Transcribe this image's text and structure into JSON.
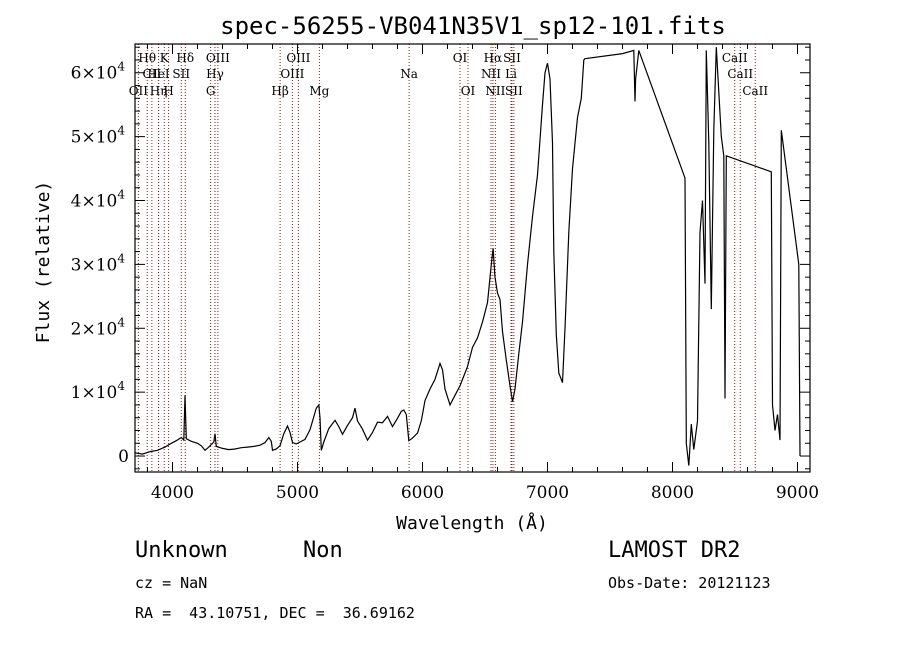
{
  "chart_data": {
    "type": "line",
    "title": "spec-56255-VB041N35V1_sp12-101.fits",
    "xlabel": "Wavelength (Å)",
    "ylabel": "Flux (relative)",
    "xlim": [
      3700,
      9100
    ],
    "ylim": [
      -2500,
      64500
    ],
    "xticks": [
      {
        "value": 4000,
        "label": "4000"
      },
      {
        "value": 5000,
        "label": "5000"
      },
      {
        "value": 6000,
        "label": "6000"
      },
      {
        "value": 7000,
        "label": "7000"
      },
      {
        "value": 8000,
        "label": "8000"
      },
      {
        "value": 9000,
        "label": "9000"
      }
    ],
    "yticks": [
      {
        "value": 0,
        "label": "0"
      },
      {
        "value": 10000,
        "mant": "1×10",
        "exp": "4"
      },
      {
        "value": 20000,
        "mant": "2×10",
        "exp": "4"
      },
      {
        "value": 30000,
        "mant": "3×10",
        "exp": "4"
      },
      {
        "value": 40000,
        "mant": "4×10",
        "exp": "4"
      },
      {
        "value": 50000,
        "mant": "5×10",
        "exp": "4"
      },
      {
        "value": 60000,
        "mant": "6×10",
        "exp": "4"
      }
    ],
    "series": [
      {
        "points": [
          [
            3700,
            500
          ],
          [
            3760,
            300
          ],
          [
            3820,
            700
          ],
          [
            3880,
            900
          ],
          [
            3940,
            1400
          ],
          [
            3990,
            2000
          ],
          [
            4030,
            2400
          ],
          [
            4070,
            2900
          ],
          [
            4090,
            2500
          ],
          [
            4100,
            9500
          ],
          [
            4110,
            2700
          ],
          [
            4150,
            2300
          ],
          [
            4200,
            2000
          ],
          [
            4230,
            1600
          ],
          [
            4260,
            900
          ],
          [
            4290,
            1400
          ],
          [
            4330,
            2200
          ],
          [
            4340,
            3500
          ],
          [
            4350,
            1500
          ],
          [
            4400,
            1200
          ],
          [
            4450,
            1000
          ],
          [
            4500,
            1100
          ],
          [
            4550,
            1300
          ],
          [
            4600,
            1400
          ],
          [
            4650,
            1500
          ],
          [
            4700,
            1700
          ],
          [
            4740,
            2100
          ],
          [
            4770,
            2900
          ],
          [
            4790,
            2300
          ],
          [
            4800,
            900
          ],
          [
            4830,
            1100
          ],
          [
            4860,
            1600
          ],
          [
            4890,
            3500
          ],
          [
            4920,
            4700
          ],
          [
            4940,
            3700
          ],
          [
            4960,
            2100
          ],
          [
            4990,
            1900
          ],
          [
            5020,
            2200
          ],
          [
            5060,
            2600
          ],
          [
            5100,
            4100
          ],
          [
            5150,
            7500
          ],
          [
            5170,
            8000
          ],
          [
            5180,
            6000
          ],
          [
            5190,
            900
          ],
          [
            5210,
            2200
          ],
          [
            5250,
            4300
          ],
          [
            5300,
            5600
          ],
          [
            5330,
            4600
          ],
          [
            5360,
            3400
          ],
          [
            5400,
            4800
          ],
          [
            5440,
            6000
          ],
          [
            5460,
            7500
          ],
          [
            5480,
            5500
          ],
          [
            5520,
            4200
          ],
          [
            5560,
            2500
          ],
          [
            5600,
            3700
          ],
          [
            5640,
            5300
          ],
          [
            5680,
            5200
          ],
          [
            5720,
            6200
          ],
          [
            5760,
            4600
          ],
          [
            5800,
            5900
          ],
          [
            5830,
            7000
          ],
          [
            5850,
            7200
          ],
          [
            5870,
            6500
          ],
          [
            5890,
            2400
          ],
          [
            5920,
            2800
          ],
          [
            5960,
            3600
          ],
          [
            5990,
            5500
          ],
          [
            6020,
            8700
          ],
          [
            6060,
            10500
          ],
          [
            6100,
            12000
          ],
          [
            6140,
            14500
          ],
          [
            6160,
            13500
          ],
          [
            6180,
            10500
          ],
          [
            6220,
            8000
          ],
          [
            6260,
            9500
          ],
          [
            6300,
            11000
          ],
          [
            6320,
            12000
          ],
          [
            6360,
            14000
          ],
          [
            6400,
            17000
          ],
          [
            6440,
            18500
          ],
          [
            6480,
            21000
          ],
          [
            6520,
            24000
          ],
          [
            6550,
            30000
          ],
          [
            6565,
            32500
          ],
          [
            6580,
            28000
          ],
          [
            6600,
            25500
          ],
          [
            6620,
            24500
          ],
          [
            6640,
            19500
          ],
          [
            6670,
            15000
          ],
          [
            6700,
            11000
          ],
          [
            6720,
            8500
          ],
          [
            6740,
            10500
          ],
          [
            6770,
            16000
          ],
          [
            6800,
            21000
          ],
          [
            6840,
            30000
          ],
          [
            6880,
            37500
          ],
          [
            6920,
            44000
          ],
          [
            6960,
            55000
          ],
          [
            6980,
            60000
          ],
          [
            7000,
            61500
          ],
          [
            7020,
            59000
          ],
          [
            7040,
            49000
          ],
          [
            7050,
            32000
          ],
          [
            7070,
            19000
          ],
          [
            7090,
            13000
          ],
          [
            7120,
            11500
          ],
          [
            7140,
            20000
          ],
          [
            7170,
            35000
          ],
          [
            7200,
            45000
          ],
          [
            7240,
            53000
          ],
          [
            7270,
            56000
          ],
          [
            7290,
            62000
          ],
          [
            7300,
            62200
          ],
          [
            7600,
            63000
          ],
          [
            7690,
            63500
          ],
          [
            7700,
            55500
          ],
          [
            7705,
            59000
          ],
          [
            7730,
            63500
          ],
          [
            8100,
            43500
          ],
          [
            8110,
            2000
          ],
          [
            8130,
            -1500
          ],
          [
            8150,
            5000
          ],
          [
            8170,
            1000
          ],
          [
            8200,
            5500
          ],
          [
            8220,
            35000
          ],
          [
            8240,
            40000
          ],
          [
            8260,
            27000
          ],
          [
            8270,
            63500
          ],
          [
            8290,
            49000
          ],
          [
            8310,
            23000
          ],
          [
            8330,
            51000
          ],
          [
            8350,
            64000
          ],
          [
            8370,
            57000
          ],
          [
            8390,
            50000
          ],
          [
            8410,
            47000
          ],
          [
            8420,
            9000
          ],
          [
            8430,
            47000
          ],
          [
            8790,
            44500
          ],
          [
            8800,
            8000
          ],
          [
            8820,
            4000
          ],
          [
            8840,
            6500
          ],
          [
            8860,
            2500
          ],
          [
            8870,
            51000
          ],
          [
            9010,
            30000
          ],
          [
            9020,
            0
          ]
        ]
      }
    ],
    "lines": [
      {
        "name": "OII",
        "wl": 3727,
        "row": 2
      },
      {
        "name": "Hθ",
        "wl": 3798,
        "row": 0
      },
      {
        "name": "CII",
        "wl": 3835,
        "row": 1
      },
      {
        "name": "Hη",
        "wl": 3889,
        "row": 2
      },
      {
        "name": "HeI",
        "wl": 3888,
        "row": 1
      },
      {
        "name": "K",
        "wl": 3934,
        "row": 0
      },
      {
        "name": "H",
        "wl": 3969,
        "row": 2
      },
      {
        "name": "SII",
        "wl": 4070,
        "row": 1
      },
      {
        "name": "Hδ",
        "wl": 4102,
        "row": 0
      },
      {
        "name": "G",
        "wl": 4305,
        "row": 2
      },
      {
        "name": "Hγ",
        "wl": 4340,
        "row": 1
      },
      {
        "name": "OIII",
        "wl": 4363,
        "row": 0
      },
      {
        "name": "Hβ",
        "wl": 4861,
        "row": 2
      },
      {
        "name": "OIII",
        "wl": 4959,
        "row": 1
      },
      {
        "name": "OIII",
        "wl": 5007,
        "row": 0
      },
      {
        "name": "Mg",
        "wl": 5175,
        "row": 2
      },
      {
        "name": "Na",
        "wl": 5893,
        "row": 1
      },
      {
        "name": "OI",
        "wl": 6300,
        "row": 0
      },
      {
        "name": "OI",
        "wl": 6364,
        "row": 2
      },
      {
        "name": "NII",
        "wl": 6548,
        "row": 1
      },
      {
        "name": "Hα",
        "wl": 6563,
        "row": 0
      },
      {
        "name": "NII",
        "wl": 6583,
        "row": 2
      },
      {
        "name": "SII",
        "wl": 6716,
        "row": 0
      },
      {
        "name": "Li",
        "wl": 6708,
        "row": 1
      },
      {
        "name": "SII",
        "wl": 6731,
        "row": 2
      },
      {
        "name": "CaII",
        "wl": 8498,
        "row": 0
      },
      {
        "name": "CaII",
        "wl": 8542,
        "row": 1
      },
      {
        "name": "CaII",
        "wl": 8662,
        "row": 2
      }
    ],
    "colors": {
      "spectrum": "#000000",
      "line_marker": "#8b1a1a",
      "axes": "#000000"
    }
  },
  "info": {
    "object": "Unknown",
    "class": "Non",
    "survey": "LAMOST DR2",
    "cz": "cz = NaN",
    "obs_date": "Obs-Date: 20121123",
    "coords": "RA =  43.10751, DEC =  36.69162"
  }
}
